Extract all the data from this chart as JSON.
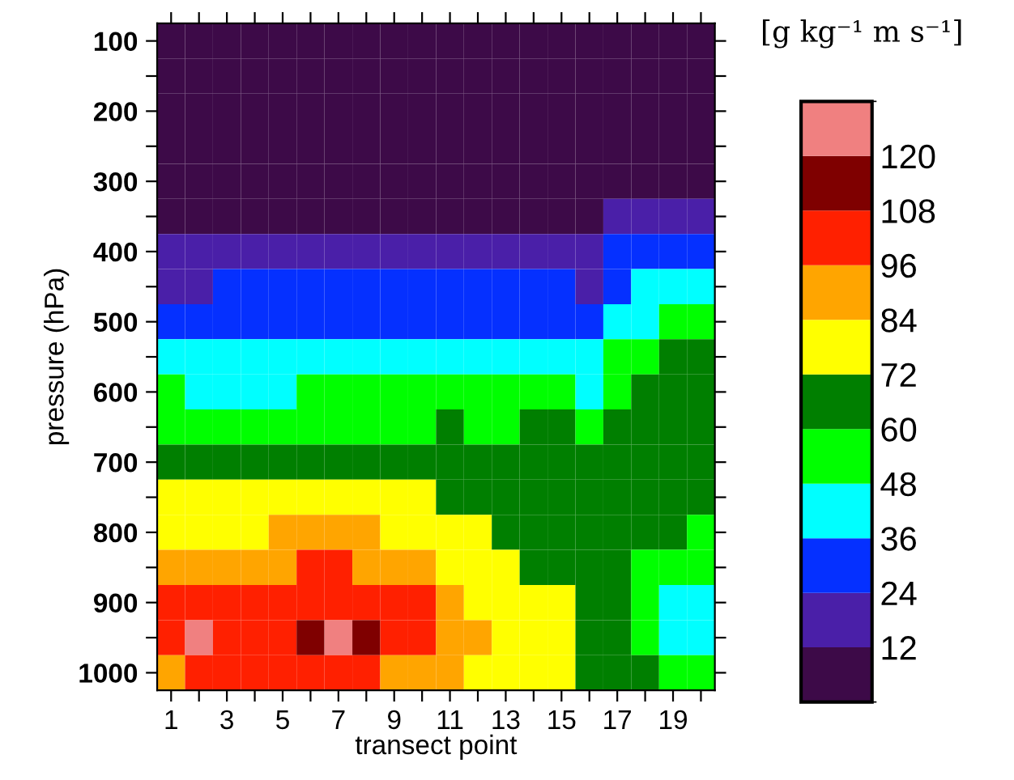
{
  "chart_data": {
    "type": "heatmap",
    "xlabel": "transect point",
    "ylabel": "pressure (hPa)",
    "clabel": "[g kg⁻¹ m s⁻¹]",
    "categories": [
      "1",
      null,
      "3",
      null,
      "5",
      null,
      "7",
      null,
      "9",
      null,
      "11",
      null,
      "13",
      null,
      "15",
      null,
      "17",
      null,
      "19",
      null
    ],
    "y_categories": [
      "100",
      null,
      "200",
      null,
      "300",
      null,
      "400",
      null,
      "500",
      null,
      "600",
      null,
      "700",
      null,
      "800",
      null,
      "900",
      null,
      "1000"
    ],
    "colors": [
      "#3d0a48",
      "#4a1fa8",
      "#0530ff",
      "#00ffff",
      "#00ff00",
      "#007f00",
      "#ffff00",
      "#ffa500",
      "#ff2000",
      "#7f0000",
      "#f08080"
    ],
    "clim": [
      0,
      132
    ],
    "cticks": [
      12,
      24,
      36,
      48,
      60,
      72,
      84,
      96,
      108,
      120
    ],
    "cells": [
      [
        6,
        6,
        6,
        6,
        6,
        6,
        6,
        6,
        6,
        6,
        6,
        6,
        6,
        6,
        6,
        6,
        6,
        6,
        6,
        6
      ],
      [
        6,
        6,
        6,
        6,
        6,
        6,
        6,
        6,
        6,
        6,
        6,
        6,
        6,
        6,
        6,
        6,
        6,
        6,
        6,
        6
      ],
      [
        6,
        6,
        6,
        6,
        6,
        6,
        6,
        6,
        6,
        6,
        6,
        6,
        6,
        6,
        6,
        6,
        6,
        6,
        6,
        6
      ],
      [
        6,
        6,
        6,
        6,
        6,
        6,
        6,
        6,
        6,
        6,
        6,
        6,
        6,
        6,
        6,
        6,
        6,
        6,
        6,
        6
      ],
      [
        6,
        6,
        6,
        6,
        6,
        6,
        6,
        6,
        6,
        6,
        6,
        6,
        6,
        6,
        6,
        6,
        6,
        6,
        6,
        6
      ],
      [
        6,
        6,
        6,
        6,
        6,
        6,
        6,
        6,
        6,
        6,
        6,
        6,
        6,
        6,
        6,
        6,
        18,
        18,
        18,
        18
      ],
      [
        18,
        18,
        18,
        18,
        18,
        18,
        18,
        18,
        18,
        18,
        18,
        18,
        18,
        18,
        18,
        18,
        30,
        30,
        30,
        30
      ],
      [
        18,
        18,
        30,
        30,
        30,
        30,
        30,
        30,
        30,
        30,
        30,
        30,
        30,
        30,
        30,
        18,
        30,
        42,
        42,
        42
      ],
      [
        30,
        30,
        30,
        30,
        30,
        30,
        30,
        30,
        30,
        30,
        30,
        30,
        30,
        30,
        30,
        30,
        42,
        42,
        54,
        54
      ],
      [
        42,
        42,
        42,
        42,
        42,
        42,
        42,
        42,
        42,
        42,
        42,
        42,
        42,
        42,
        42,
        42,
        54,
        54,
        66,
        66
      ],
      [
        54,
        42,
        42,
        42,
        42,
        54,
        54,
        54,
        54,
        54,
        54,
        54,
        54,
        54,
        54,
        42,
        54,
        66,
        66,
        66
      ],
      [
        54,
        54,
        54,
        54,
        54,
        54,
        54,
        54,
        54,
        54,
        66,
        54,
        54,
        66,
        66,
        54,
        66,
        66,
        66,
        66
      ],
      [
        66,
        66,
        66,
        66,
        66,
        66,
        66,
        66,
        66,
        66,
        66,
        66,
        66,
        66,
        66,
        66,
        66,
        66,
        66,
        66
      ],
      [
        78,
        78,
        78,
        78,
        78,
        78,
        78,
        78,
        78,
        78,
        66,
        66,
        66,
        66,
        66,
        66,
        66,
        66,
        66,
        66
      ],
      [
        78,
        78,
        78,
        78,
        90,
        90,
        90,
        90,
        78,
        78,
        78,
        78,
        66,
        66,
        66,
        66,
        66,
        66,
        66,
        54
      ],
      [
        90,
        90,
        90,
        90,
        90,
        102,
        102,
        90,
        90,
        90,
        78,
        78,
        78,
        66,
        66,
        66,
        66,
        54,
        54,
        54
      ],
      [
        102,
        102,
        102,
        102,
        102,
        102,
        102,
        102,
        102,
        102,
        90,
        78,
        78,
        78,
        78,
        66,
        66,
        54,
        42,
        42
      ],
      [
        102,
        126,
        102,
        102,
        102,
        114,
        126,
        114,
        102,
        102,
        90,
        90,
        78,
        78,
        78,
        66,
        66,
        54,
        42,
        42
      ],
      [
        90,
        102,
        102,
        102,
        102,
        102,
        102,
        102,
        90,
        90,
        90,
        78,
        78,
        78,
        78,
        66,
        66,
        66,
        54,
        54
      ]
    ]
  }
}
